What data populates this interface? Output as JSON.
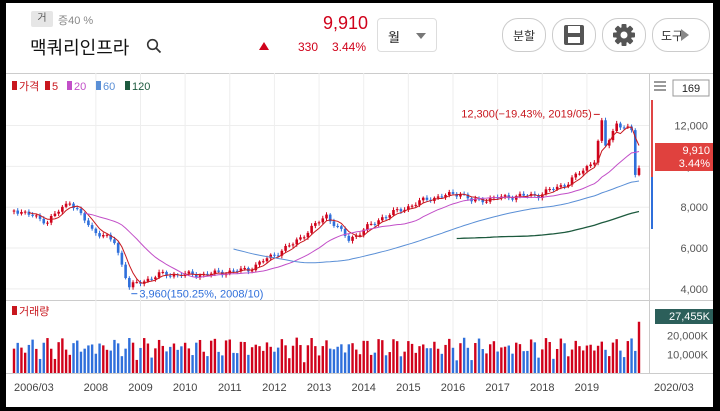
{
  "header": {
    "badge": "거",
    "margin_rate": "증40 %",
    "stock_name": "맥쿼리인프라",
    "price": "9,910",
    "change": "330",
    "change_pct": "3.44%",
    "period": "월",
    "buttons": {
      "split": "분할",
      "tools": "도구"
    }
  },
  "legend": {
    "price": "가격",
    "ma": [
      "5",
      "20",
      "60",
      "120"
    ],
    "volume": "거래량"
  },
  "colors": {
    "up": "#d0021b",
    "down": "#2f6fdb",
    "ma5": "#c8171e",
    "ma20": "#c24fc8",
    "ma60": "#5a8fd6",
    "ma120": "#1d5a3e"
  },
  "chart_data": {
    "type": "candlestick",
    "x_tick_labels": [
      "2006/03",
      "2008",
      "2009",
      "2010",
      "2011",
      "2012",
      "2013",
      "2014",
      "2015",
      "2016",
      "2017",
      "2018",
      "2019",
      "2020/03"
    ],
    "y_tick_labels": [
      "12,000",
      "10,000",
      "8,000",
      "6,000",
      "4,000"
    ],
    "ylim": [
      3700,
      13200
    ],
    "ma_periods_months": [
      5,
      20,
      60,
      120
    ],
    "current_price_label": "9,910",
    "current_change_label": "3.44%",
    "scale_box": "169",
    "annotations": {
      "high": "12,300(−19.43%, 2019/05)",
      "low": "3,960(150.25%, 2008/10)"
    },
    "volume": {
      "current_label": "27,455K",
      "y_tick_labels": [
        "20,000K",
        "10,000K"
      ],
      "ylim": [
        0,
        30000
      ]
    },
    "anchor_points": [
      {
        "date": "2006/03",
        "price": 7900
      },
      {
        "date": "2006/12",
        "price": 7300
      },
      {
        "date": "2007/06",
        "price": 8300
      },
      {
        "date": "2007/12",
        "price": 6900
      },
      {
        "date": "2008/06",
        "price": 6300
      },
      {
        "date": "2008/10",
        "price": 4100
      },
      {
        "date": "2009/06",
        "price": 4700
      },
      {
        "date": "2010/06",
        "price": 4700
      },
      {
        "date": "2011/06",
        "price": 4950
      },
      {
        "date": "2012/06",
        "price": 6200
      },
      {
        "date": "2013/03",
        "price": 7600
      },
      {
        "date": "2013/09",
        "price": 6400
      },
      {
        "date": "2014/06",
        "price": 7500
      },
      {
        "date": "2015/06",
        "price": 8400
      },
      {
        "date": "2016/03",
        "price": 8700
      },
      {
        "date": "2016/06",
        "price": 8300
      },
      {
        "date": "2017/03",
        "price": 8500
      },
      {
        "date": "2017/12",
        "price": 8600
      },
      {
        "date": "2018/08",
        "price": 9200
      },
      {
        "date": "2019/03",
        "price": 10300
      },
      {
        "date": "2019/05",
        "price": 12100
      },
      {
        "date": "2019/06",
        "price": 11000
      },
      {
        "date": "2019/09",
        "price": 12100
      },
      {
        "date": "2020/01",
        "price": 11700
      },
      {
        "date": "2020/02",
        "price": 9580
      },
      {
        "date": "2020/03",
        "price": 9910
      }
    ]
  }
}
